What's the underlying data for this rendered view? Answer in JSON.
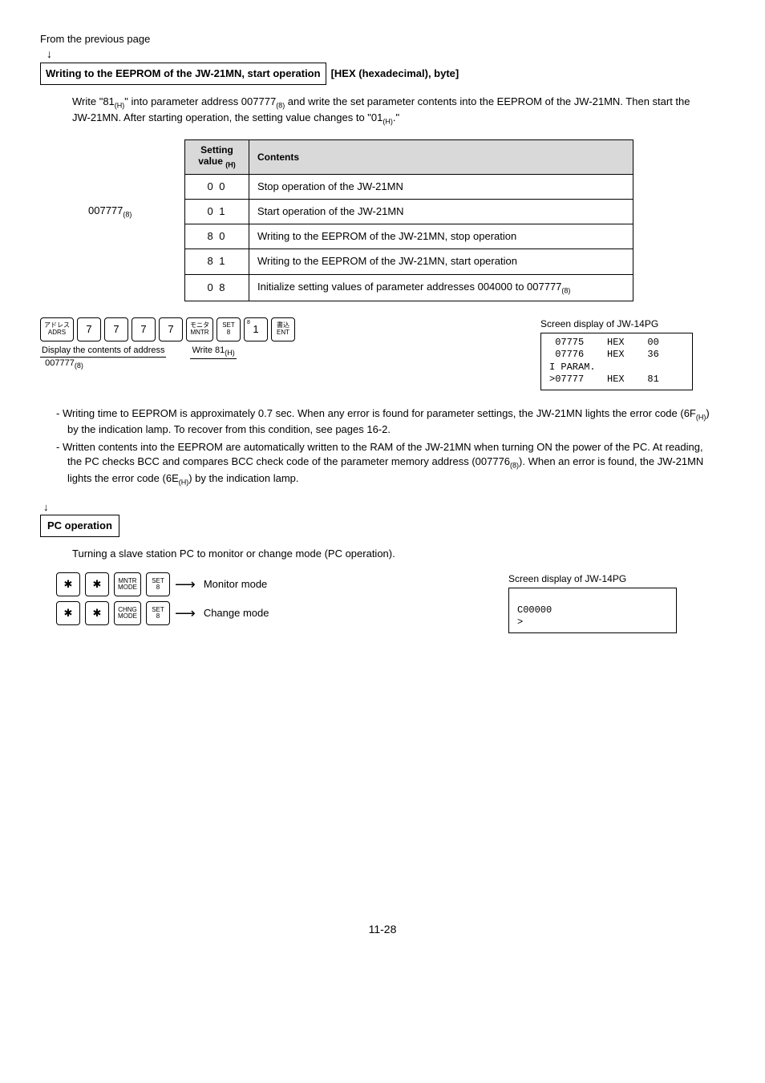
{
  "top": {
    "prevpage": "From the previous page"
  },
  "heading1": {
    "boxed": "Writing to the EEPROM of the JW-21MN, start operation",
    "suffix": "[HEX (hexadecimal), byte]"
  },
  "para1_a": "Write \"81",
  "para1_b": "\" into parameter address 007777",
  "para1_c": " and write the set parameter contents into the EEPROM of the JW-21MN. Then start the JW-21MN. After starting operation, the setting value changes to \"01",
  "para1_d": ".\"",
  "addr_label_a": "007777",
  "table": {
    "head_sv_a": "Setting",
    "head_sv_b": "value",
    "head_contents": "Contents",
    "rows": [
      {
        "sv": "0 0",
        "c": "Stop operation of the JW-21MN"
      },
      {
        "sv": "0 1",
        "c": "Start operation of the JW-21MN"
      },
      {
        "sv": "8 0",
        "c": "Writing to the EEPROM of the JW-21MN, stop operation"
      },
      {
        "sv": "8 1",
        "c": "Writing to the EEPROM of the JW-21MN, start operation"
      },
      {
        "sv": "0 8",
        "c_a": "Initialize setting values of parameter addresses 004000 to 007777"
      }
    ]
  },
  "keys": {
    "adrs_a": "アドレス",
    "adrs_b": "ADRS",
    "k7": "7",
    "mntr_a": "モニタ",
    "mntr_b": "MNTR",
    "set_a": "SET",
    "set_b": "8",
    "k1": "1",
    "k1sup": "8",
    "ent_a": "書込",
    "ent_b": "ENT",
    "cap_a_pre": "Display the contents of address",
    "cap_a_addr": "007777",
    "cap_b_pre": "Write 81"
  },
  "screen1": {
    "label": "Screen display of JW-14PG",
    "l1": " 07775    HEX    00",
    "l2": " 07776    HEX    36",
    "l3": "I PARAM.",
    "l4": ">07777    HEX    81"
  },
  "bullets": {
    "b1_a": "- Writing time to EEPROM is approximately 0.7 sec. When any error is found for parameter settings, the JW-21MN lights the error code (6F",
    "b1_b": ") by the indication lamp. To recover from this condition, see pages 16-2.",
    "b2_a": "- Written contents into the EEPROM are automatically written to the RAM of the JW-21MN when turning ON the power of the PC. At reading, the PC checks BCC and compares BCC check code of the parameter memory address (007776",
    "b2_b": "). When an error is found, the JW-21MN lights the error code (6E",
    "b2_c": ") by the indication lamp."
  },
  "heading2": "PC operation",
  "para2": "Turning a slave station PC to monitor or change mode (PC operation).",
  "mode": {
    "star": "✱",
    "mntr_a": "MNTR",
    "mntr_b": "MODE",
    "chng_a": "CHNG",
    "chng_b": "MODE",
    "set_a": "SET",
    "set_b": "8",
    "monitor": "Monitor mode",
    "change": "Change mode"
  },
  "screen2": {
    "label": "Screen display of JW-14PG",
    "l1": "C00000",
    "l2": ">"
  },
  "pagenum": "11-28"
}
